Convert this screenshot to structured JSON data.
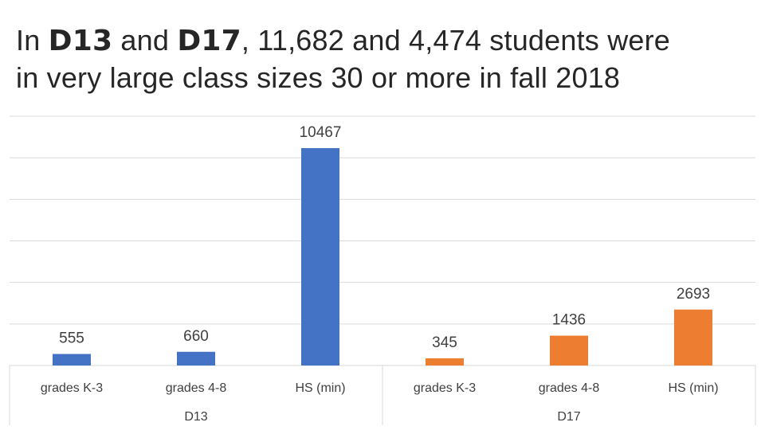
{
  "slide": {
    "title_parts": [
      "In ",
      "D13",
      " and ",
      "D17",
      ", 11,682 and 4,474 students were",
      "in very large class sizes 30 or more in fall 2018"
    ]
  },
  "chart_data": {
    "type": "bar",
    "title": "",
    "xlabel": "",
    "ylabel": "",
    "ylim": [
      0,
      12000
    ],
    "y_gridlines": [
      2000,
      4000,
      6000,
      8000,
      10000,
      12000
    ],
    "grid": true,
    "legend": "none",
    "groups": [
      {
        "name": "D13",
        "color": "#4472c4",
        "categories": [
          "grades K-3",
          "grades 4-8",
          "HS (min)"
        ],
        "values": [
          555,
          660,
          10467
        ]
      },
      {
        "name": "D17",
        "color": "#ed7d31",
        "categories": [
          "grades K-3",
          "grades 4-8",
          "HS (min)"
        ],
        "values": [
          345,
          1436,
          2693
        ]
      }
    ]
  }
}
